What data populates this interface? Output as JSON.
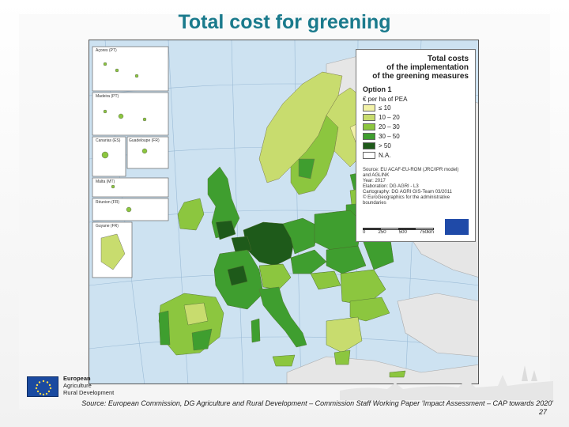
{
  "slide": {
    "title": "Total cost for greening",
    "source_note": "Source: European Commission, DG Agriculture and Rural Development – Commission Staff Working Paper 'Impact Assessment – CAP towards 2020'",
    "page_number": "27"
  },
  "logo": {
    "line1": "European",
    "line2": "Agriculture",
    "line3": "Rural Development"
  },
  "legend": {
    "title_line1": "Total costs",
    "title_line2": "of the implementation",
    "title_line3": "of the greening measures",
    "option": "Option 1",
    "unit": "€ per ha of PEA",
    "items": [
      {
        "label": "≤ 10",
        "color": "#f2f2a8"
      },
      {
        "label": "10 – 20",
        "color": "#c8dc6e"
      },
      {
        "label": "20 – 30",
        "color": "#8cc63f"
      },
      {
        "label": "30 – 50",
        "color": "#3f9e2f"
      },
      {
        "label": "> 50",
        "color": "#1e5a1a"
      },
      {
        "label": "N.A.",
        "color": "#ffffff"
      }
    ],
    "source_lines": [
      "Source: EU ACAF-EU-ROM (JRC/IPR model)",
      "and AGLINK",
      "Year: 2017",
      "Elaboration: DG AGRI - L3",
      "Cartography: DG AGRI GIS-Team 03/2011",
      "© EuroGeographics for the administrative boundaries"
    ],
    "scale_labels": [
      "0",
      "250",
      "500",
      "750km"
    ]
  },
  "insets": [
    {
      "label": "Açores (PT)"
    },
    {
      "label": "Madeira (PT)"
    },
    {
      "label": "Canarias (ES)"
    },
    {
      "label": "Guadeloupe (FR)"
    },
    {
      "label": "Malta (MT)"
    },
    {
      "label": "Réunion (FR)"
    },
    {
      "label": "Guyane (FR)"
    }
  ]
}
